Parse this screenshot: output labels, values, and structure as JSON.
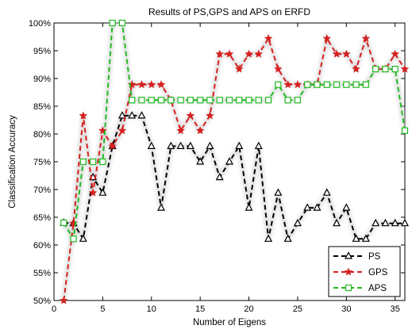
{
  "chart_data": {
    "type": "line",
    "title": "Results of PS,GPS and APS on ERFD",
    "xlabel": "Number of Eigens",
    "ylabel": "Classification Accuracy",
    "xlim": [
      0,
      36
    ],
    "ylim": [
      50,
      100
    ],
    "x_ticks": [
      0,
      5,
      10,
      15,
      20,
      25,
      30,
      35
    ],
    "y_ticks": [
      50,
      55,
      60,
      65,
      70,
      75,
      80,
      85,
      90,
      95,
      100
    ],
    "y_tick_suffix": "%",
    "grid": false,
    "legend_position": "bottom-right",
    "x": [
      1,
      2,
      3,
      4,
      5,
      6,
      7,
      8,
      9,
      10,
      11,
      12,
      13,
      14,
      15,
      16,
      17,
      18,
      19,
      20,
      21,
      22,
      23,
      24,
      25,
      26,
      27,
      28,
      29,
      30,
      31,
      32,
      33,
      34,
      35,
      36
    ],
    "series": [
      {
        "name": "PS",
        "color": "#000000",
        "marker": "triangle",
        "values": [
          64.0,
          63.9,
          61.1,
          72.2,
          69.4,
          77.8,
          83.3,
          83.3,
          83.3,
          77.8,
          66.7,
          77.8,
          77.8,
          77.8,
          75.0,
          77.8,
          72.2,
          75.0,
          77.8,
          66.7,
          77.8,
          61.1,
          69.4,
          61.1,
          63.9,
          66.7,
          66.7,
          69.4,
          63.9,
          66.7,
          61.1,
          61.1,
          63.9,
          63.9,
          63.9,
          63.9
        ]
      },
      {
        "name": "GPS",
        "color": "#d62020",
        "marker": "star",
        "values": [
          50.0,
          63.9,
          83.3,
          69.4,
          80.6,
          77.8,
          80.6,
          88.9,
          88.9,
          88.9,
          88.9,
          86.1,
          80.6,
          83.3,
          80.6,
          83.3,
          94.4,
          94.4,
          91.7,
          94.4,
          94.4,
          97.2,
          91.7,
          88.9,
          88.9,
          88.9,
          88.9,
          97.2,
          94.4,
          94.4,
          91.7,
          97.2,
          91.7,
          91.7,
          94.4,
          91.7
        ]
      },
      {
        "name": "APS",
        "color": "#22bb22",
        "marker": "square",
        "values": [
          64.0,
          61.1,
          75.0,
          75.0,
          75.0,
          100.0,
          100.0,
          86.1,
          86.1,
          86.1,
          86.1,
          86.1,
          86.1,
          86.1,
          86.1,
          86.1,
          86.1,
          86.1,
          86.1,
          86.1,
          86.1,
          86.1,
          88.9,
          86.1,
          86.1,
          88.9,
          88.9,
          88.9,
          88.9,
          88.9,
          88.9,
          88.9,
          91.7,
          91.7,
          91.7,
          80.6
        ]
      }
    ]
  }
}
